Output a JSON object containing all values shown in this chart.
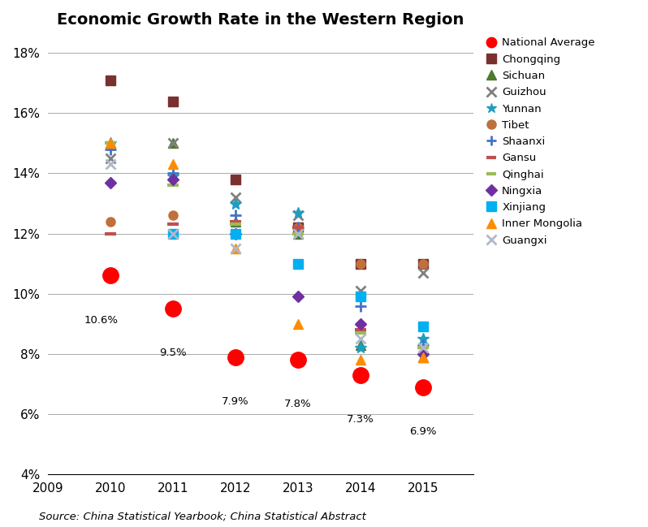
{
  "title": "Economic Growth Rate in the Western Region",
  "source": "Source: China Statistical Yearbook; China Statistical Abstract",
  "years": [
    2010,
    2011,
    2012,
    2013,
    2014,
    2015
  ],
  "xlim": [
    2009,
    2015.8
  ],
  "ylim": [
    0.04,
    0.185
  ],
  "yticks": [
    0.04,
    0.06,
    0.08,
    0.1,
    0.12,
    0.14,
    0.16,
    0.18
  ],
  "ytick_labels": [
    "4%",
    "6%",
    "8%",
    "10%",
    "12%",
    "14%",
    "16%",
    "18%"
  ],
  "series": [
    {
      "name": "National Average",
      "color": "#FF0000",
      "marker": "o",
      "markersize": 14,
      "markeredgecolor": "#FF0000",
      "markeredgewidth": 1,
      "zorder": 5,
      "values": [
        0.106,
        0.095,
        0.079,
        0.078,
        0.073,
        0.069
      ]
    },
    {
      "name": "Chongqing",
      "color": "#7B3030",
      "marker": "s",
      "markersize": 8,
      "markeredgecolor": "#7B3030",
      "markeredgewidth": 1,
      "zorder": 3,
      "values": [
        0.171,
        0.164,
        0.138,
        0.122,
        0.11,
        0.11
      ]
    },
    {
      "name": "Sichuan",
      "color": "#4E7A2E",
      "marker": "^",
      "markersize": 8,
      "markeredgecolor": "#4E7A2E",
      "markeredgewidth": 1,
      "zorder": 3,
      "values": [
        0.15,
        0.15,
        0.124,
        0.12,
        0.083,
        0.079
      ]
    },
    {
      "name": "Guizhou",
      "color": "#808080",
      "marker": "x",
      "markersize": 9,
      "markeredgecolor": "#808080",
      "markeredgewidth": 2,
      "zorder": 3,
      "values": [
        0.145,
        0.15,
        0.132,
        0.126,
        0.101,
        0.107
      ]
    },
    {
      "name": "Yunnan",
      "color": "#1F9DBF",
      "marker": "*",
      "markersize": 10,
      "markeredgecolor": "#1F9DBF",
      "markeredgewidth": 1,
      "zorder": 3,
      "values": [
        0.15,
        0.139,
        0.13,
        0.127,
        0.082,
        0.085
      ]
    },
    {
      "name": "Tibet",
      "color": "#C0703A",
      "marker": "o",
      "markersize": 8,
      "markeredgecolor": "#C0703A",
      "markeredgewidth": 1,
      "zorder": 3,
      "values": [
        0.124,
        0.126,
        0.12,
        0.122,
        0.11,
        0.11
      ]
    },
    {
      "name": "Shaanxi",
      "color": "#4472C4",
      "marker": "+",
      "markersize": 10,
      "markeredgecolor": "#4472C4",
      "markeredgewidth": 2,
      "zorder": 3,
      "values": [
        0.148,
        0.14,
        0.126,
        0.122,
        0.096,
        0.083
      ]
    },
    {
      "name": "Gansu",
      "color": "#C0504D",
      "marker": "_",
      "markersize": 10,
      "markeredgecolor": "#C0504D",
      "markeredgewidth": 3,
      "zorder": 3,
      "values": [
        0.12,
        0.123,
        0.124,
        0.122,
        0.088,
        0.082
      ]
    },
    {
      "name": "Qinghai",
      "color": "#9BBB59",
      "marker": "_",
      "markersize": 10,
      "markeredgecolor": "#9BBB59",
      "markeredgewidth": 3,
      "zorder": 3,
      "values": [
        0.15,
        0.136,
        0.123,
        0.12,
        0.087,
        0.082
      ]
    },
    {
      "name": "Ningxia",
      "color": "#7030A0",
      "marker": "D",
      "markersize": 7,
      "markeredgecolor": "#7030A0",
      "markeredgewidth": 1,
      "zorder": 3,
      "values": [
        0.137,
        0.138,
        0.12,
        0.099,
        0.09,
        0.08
      ]
    },
    {
      "name": "Xinjiang",
      "color": "#00B0F0",
      "marker": "s",
      "markersize": 9,
      "markeredgecolor": "#00B0F0",
      "markeredgewidth": 1,
      "zorder": 3,
      "values": [
        0.106,
        0.12,
        0.12,
        0.11,
        0.099,
        0.089
      ]
    },
    {
      "name": "Inner Mongolia",
      "color": "#FF8C00",
      "marker": "^",
      "markersize": 8,
      "markeredgecolor": "#FF8C00",
      "markeredgewidth": 1,
      "zorder": 3,
      "values": [
        0.15,
        0.143,
        0.115,
        0.09,
        0.078,
        0.079
      ]
    },
    {
      "name": "Guangxi",
      "color": "#B0B8C8",
      "marker": "x",
      "markersize": 9,
      "markeredgecolor": "#B0B8C8",
      "markeredgewidth": 2,
      "zorder": 3,
      "values": [
        0.143,
        0.12,
        0.115,
        0.12,
        0.085,
        0.082
      ]
    }
  ],
  "national_labels": [
    "10.6%",
    "9.5%",
    "7.9%",
    "7.8%",
    "7.3%",
    "6.9%"
  ],
  "national_label_xoff": [
    -0.15,
    0.0,
    0.0,
    0.0,
    0.0,
    0.0
  ],
  "national_label_yoff": [
    -0.013,
    -0.013,
    -0.013,
    -0.013,
    -0.013,
    -0.013
  ]
}
